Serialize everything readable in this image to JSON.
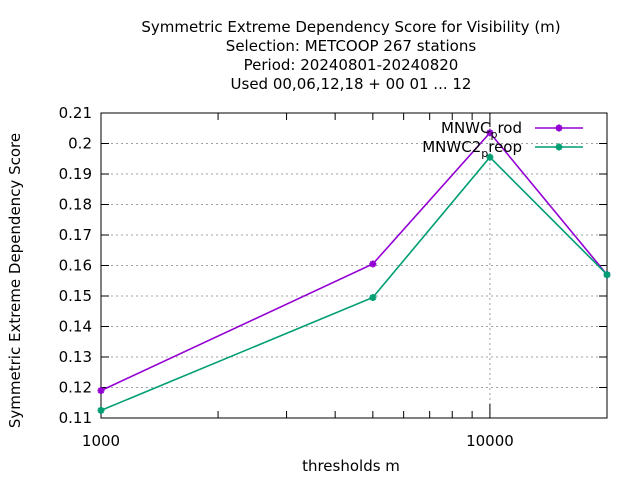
{
  "chart_data": {
    "type": "line",
    "title_lines": [
      "Symmetric Extreme Dependency Score  for Visibility (m)",
      "Selection: METCOOP    267 stations",
      "Period: 20240801-20240820",
      "Used  00,06,12,18 + 00 01 ... 12"
    ],
    "xlabel": "thresholds m",
    "ylabel": "Symmetric Extreme Dependency Score",
    "x_scale": "log",
    "xlim": [
      1000,
      20000
    ],
    "ylim": [
      0.11,
      0.21
    ],
    "x_ticks": [
      1000,
      10000
    ],
    "x_tick_labels": [
      "1000",
      "10000"
    ],
    "y_ticks": [
      0.11,
      0.12,
      0.13,
      0.14,
      0.15,
      0.16,
      0.17,
      0.18,
      0.19,
      0.2,
      0.21
    ],
    "y_tick_labels": [
      "0.11",
      "0.12",
      "0.13",
      "0.14",
      "0.15",
      "0.16",
      "0.17",
      "0.18",
      "0.19",
      "0.2",
      "0.21"
    ],
    "grid": true,
    "legend_position": "top-right",
    "x": [
      1000,
      5000,
      10000,
      20000
    ],
    "series": [
      {
        "name_main": "MNWC",
        "name_sub": "p",
        "name_tail": "rod",
        "color": "#9400d3",
        "values": [
          0.119,
          0.1605,
          0.2035,
          0.157
        ]
      },
      {
        "name_main": "MNWC2",
        "name_sub": "p",
        "name_tail": "reop",
        "color": "#009e73",
        "values": [
          0.1125,
          0.1495,
          0.1955,
          0.157
        ]
      }
    ]
  }
}
